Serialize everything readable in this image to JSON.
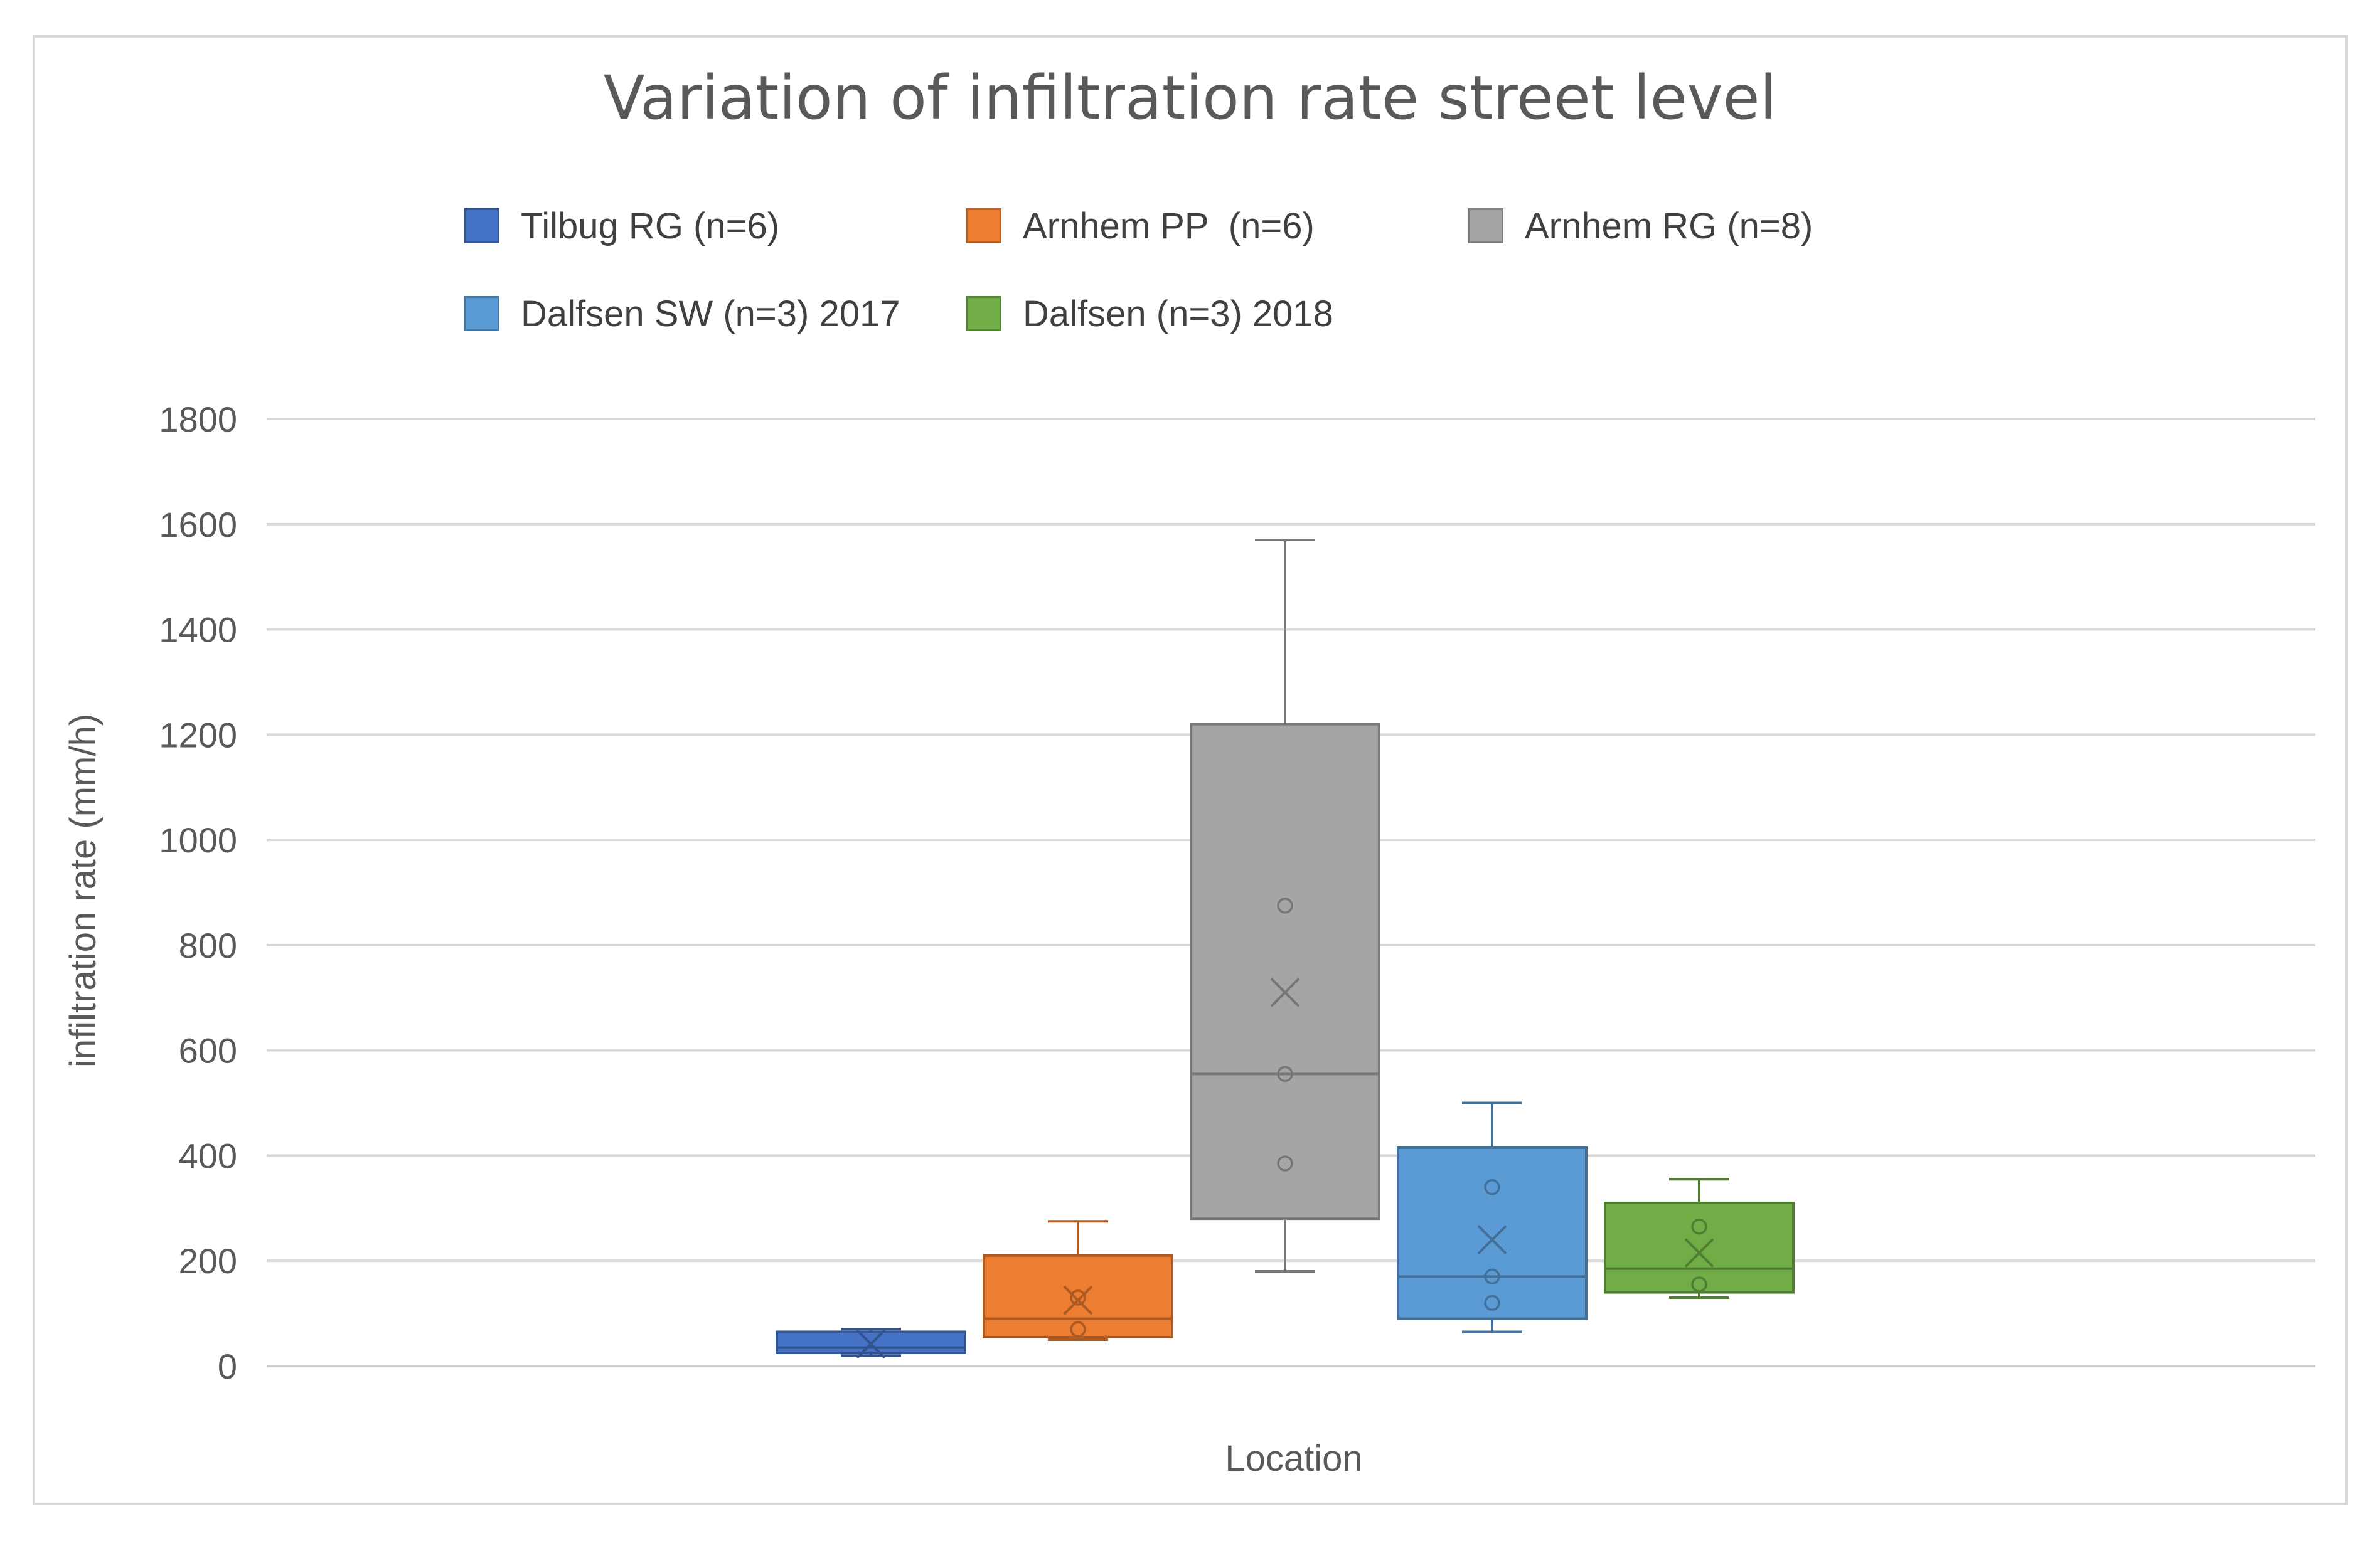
{
  "chart_data": {
    "type": "box",
    "title": "Variation of infiltration rate street level",
    "xlabel": "Location",
    "ylabel": "infiltration rate (mm/h)",
    "ylim": [
      0,
      1800
    ],
    "yticks": [
      0,
      200,
      400,
      600,
      800,
      1000,
      1200,
      1400,
      1600,
      1800
    ],
    "grid": true,
    "legend_position": "top",
    "series": [
      {
        "name": "Tilbug RG (n=6)",
        "color": "#4472c4",
        "whisker_low": 20,
        "q1": 25,
        "median": 35,
        "q3": 65,
        "whisker_high": 70,
        "mean": 42,
        "points": []
      },
      {
        "name": "Arnhem PP  (n=6)",
        "color": "#ed7d31",
        "whisker_low": 50,
        "q1": 55,
        "median": 90,
        "q3": 210,
        "whisker_high": 275,
        "mean": 125,
        "points": [
          70,
          130
        ]
      },
      {
        "name": "Arnhem RG (n=8)",
        "color": "#a5a5a5",
        "whisker_low": 180,
        "q1": 280,
        "median": 555,
        "q3": 1220,
        "whisker_high": 1570,
        "mean": 710,
        "points": [
          385,
          555,
          875
        ]
      },
      {
        "name": "Dalfsen SW (n=3) 2017",
        "color": "#5b9bd5",
        "whisker_low": 65,
        "q1": 90,
        "median": 170,
        "q3": 415,
        "whisker_high": 500,
        "mean": 240,
        "points": [
          120,
          170,
          340
        ]
      },
      {
        "name": "Dalfsen (n=3) 2018",
        "color": "#70ad47",
        "whisker_low": 130,
        "q1": 140,
        "median": 185,
        "q3": 310,
        "whisker_high": 355,
        "mean": 215,
        "points": [
          155,
          265
        ]
      }
    ]
  }
}
